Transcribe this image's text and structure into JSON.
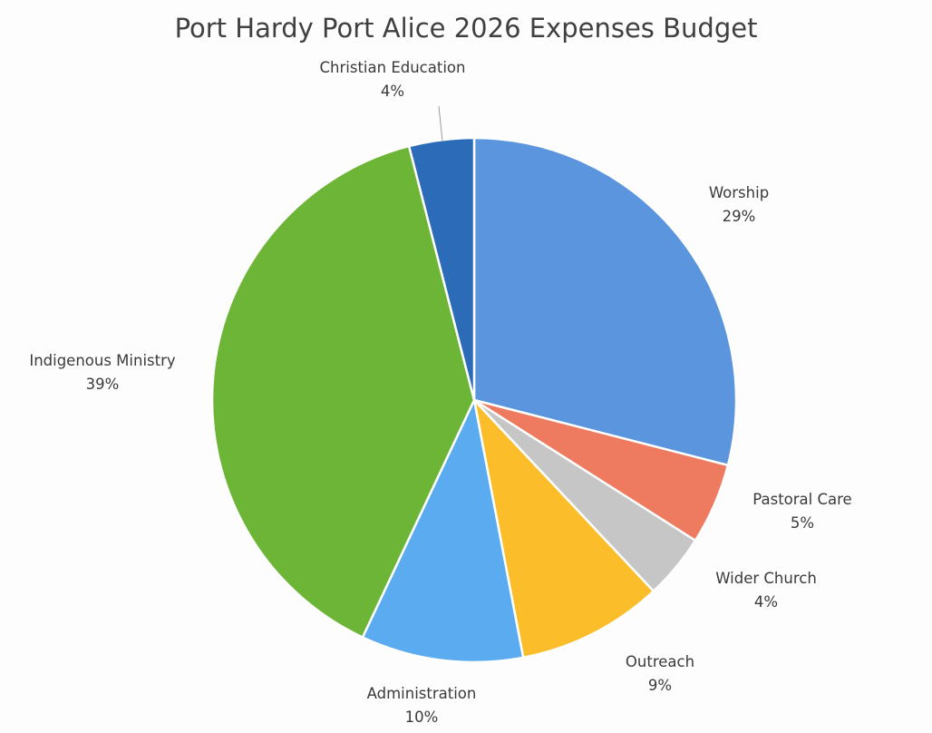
{
  "chart_data": {
    "type": "pie",
    "title": "Port Hardy Port Alice 2026 Expenses Budget",
    "start_angle_deg": 0,
    "direction": "clockwise",
    "slices": [
      {
        "name": "Worship",
        "value": 29,
        "label": "29%",
        "color": "#5b95de"
      },
      {
        "name": "Pastoral Care",
        "value": 5,
        "label": "5%",
        "color": "#ee7a5f"
      },
      {
        "name": "Wider Church",
        "value": 4,
        "label": "4%",
        "color": "#c6c6c6"
      },
      {
        "name": "Outreach",
        "value": 9,
        "label": "9%",
        "color": "#fbbd2a"
      },
      {
        "name": "Administration",
        "value": 10,
        "label": "10%",
        "color": "#5aabf0"
      },
      {
        "name": "Indigenous Ministry",
        "value": 39,
        "label": "39%",
        "color": "#6cb536"
      },
      {
        "name": "Christian Education",
        "value": 4,
        "label": "4%",
        "color": "#2c6bb8"
      }
    ]
  }
}
